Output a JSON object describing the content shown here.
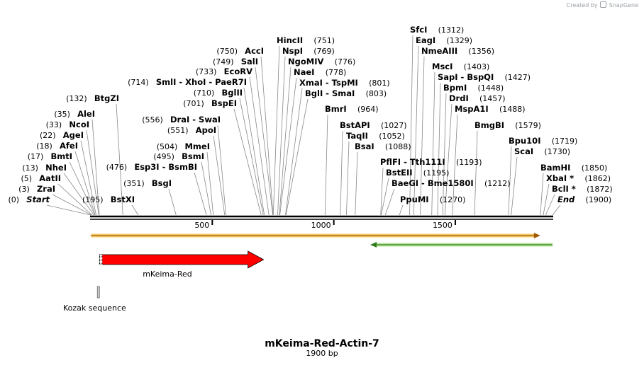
{
  "watermark": {
    "prefix": "Created by",
    "brand": "SnapGene"
  },
  "plasmid": {
    "name": "mKeima-Red-Actin-7",
    "length_label": "1900 bp",
    "length": 1900
  },
  "ticks": [
    {
      "pos": 500,
      "label": "500"
    },
    {
      "pos": 1000,
      "label": "1000"
    },
    {
      "pos": 1500,
      "label": "1500"
    }
  ],
  "features": {
    "orange_arrow": {
      "start": 1,
      "end": 1850,
      "direction": "forward",
      "color": "#f0a030"
    },
    "green_arrow": {
      "start": 1150,
      "end": 1900,
      "direction": "reverse",
      "color": "#3aa030"
    },
    "mkeima": {
      "name": "mKeima-Red",
      "start": 36,
      "end": 711,
      "color": "#ff0000"
    },
    "kozak": {
      "name": "Kozak sequence",
      "start": 30,
      "end": 36
    }
  },
  "enzymes": [
    {
      "name": "Start",
      "pos": "0",
      "site": 0,
      "italic": true,
      "order": "pos-first"
    },
    {
      "name": "ZraI",
      "pos": "3",
      "site": 3,
      "order": "pos-first"
    },
    {
      "name": "AatII",
      "pos": "5",
      "site": 5,
      "order": "pos-first"
    },
    {
      "name": "NheI",
      "pos": "13",
      "site": 13,
      "order": "pos-first"
    },
    {
      "name": "BmtI",
      "pos": "17",
      "site": 17,
      "order": "pos-first"
    },
    {
      "name": "AfeI",
      "pos": "18",
      "site": 18,
      "order": "pos-first"
    },
    {
      "name": "AgeI",
      "pos": "22",
      "site": 22,
      "order": "pos-first"
    },
    {
      "name": "NcoI",
      "pos": "33",
      "site": 33,
      "order": "pos-first"
    },
    {
      "name": "AleI",
      "pos": "35",
      "site": 35,
      "order": "pos-first"
    },
    {
      "name": "BtgZI",
      "pos": "132",
      "site": 132,
      "order": "pos-first"
    },
    {
      "name": "BstXI",
      "pos": "195",
      "site": 195,
      "order": "pos-first"
    },
    {
      "name": "Esp3I - BsmBI",
      "pos": "476",
      "site": 476,
      "order": "pos-first"
    },
    {
      "name": "BsgI",
      "pos": "351",
      "site": 351,
      "order": "pos-first"
    },
    {
      "name": "SmlI - XhoI - PaeR7I",
      "pos": "714",
      "site": 714,
      "order": "pos-first"
    },
    {
      "name": "DraI - SwaI",
      "pos": "556",
      "site": 556,
      "order": "pos-first"
    },
    {
      "name": "ApoI",
      "pos": "551",
      "site": 551,
      "order": "pos-first"
    },
    {
      "name": "MmeI",
      "pos": "504",
      "site": 504,
      "order": "pos-first"
    },
    {
      "name": "BsmI",
      "pos": "495",
      "site": 495,
      "order": "pos-first"
    },
    {
      "name": "AccI",
      "pos": "750",
      "site": 750,
      "order": "pos-first"
    },
    {
      "name": "SalI",
      "pos": "749",
      "site": 749,
      "order": "pos-first"
    },
    {
      "name": "EcoRV",
      "pos": "733",
      "site": 733,
      "order": "pos-first"
    },
    {
      "name": "BglII",
      "pos": "710",
      "site": 710,
      "order": "pos-first"
    },
    {
      "name": "BspEI",
      "pos": "701",
      "site": 701,
      "order": "pos-first"
    },
    {
      "name": "HincII",
      "pos": "751",
      "site": 751,
      "order": "name-first"
    },
    {
      "name": "NspI",
      "pos": "769",
      "site": 769,
      "order": "name-first"
    },
    {
      "name": "NgoMIV",
      "pos": "776",
      "site": 776,
      "order": "name-first"
    },
    {
      "name": "NaeI",
      "pos": "778",
      "site": 778,
      "order": "name-first"
    },
    {
      "name": "XmaI - TspMI",
      "pos": "801",
      "site": 801,
      "order": "name-first"
    },
    {
      "name": "BglI - SmaI",
      "pos": "803",
      "site": 803,
      "order": "name-first"
    },
    {
      "name": "BmrI",
      "pos": "964",
      "site": 964,
      "order": "name-first"
    },
    {
      "name": "BstAPI",
      "pos": "1027",
      "site": 1027,
      "order": "name-first"
    },
    {
      "name": "TaqII",
      "pos": "1052",
      "site": 1052,
      "order": "name-first"
    },
    {
      "name": "BsaI",
      "pos": "1088",
      "site": 1088,
      "order": "name-first"
    },
    {
      "name": "PflFI - Tth111I",
      "pos": "1193",
      "site": 1193,
      "order": "name-first"
    },
    {
      "name": "BstEII",
      "pos": "1195",
      "site": 1195,
      "order": "name-first"
    },
    {
      "name": "BaeGI - Bme1580I",
      "pos": "1212",
      "site": 1212,
      "order": "name-first"
    },
    {
      "name": "PpuMI",
      "pos": "1270",
      "site": 1270,
      "order": "name-first"
    },
    {
      "name": "SfcI",
      "pos": "1312",
      "site": 1312,
      "order": "name-first"
    },
    {
      "name": "EagI",
      "pos": "1329",
      "site": 1329,
      "order": "name-first"
    },
    {
      "name": "NmeAIII",
      "pos": "1356",
      "site": 1356,
      "order": "name-first"
    },
    {
      "name": "MscI",
      "pos": "1403",
      "site": 1403,
      "order": "name-first"
    },
    {
      "name": "SapI - BspQI",
      "pos": "1427",
      "site": 1427,
      "order": "name-first"
    },
    {
      "name": "BpmI",
      "pos": "1448",
      "site": 1448,
      "order": "name-first"
    },
    {
      "name": "DrdI",
      "pos": "1457",
      "site": 1457,
      "order": "name-first"
    },
    {
      "name": "MspA1I",
      "pos": "1488",
      "site": 1488,
      "order": "name-first"
    },
    {
      "name": "BmgBI",
      "pos": "1579",
      "site": 1579,
      "order": "name-first"
    },
    {
      "name": "Bpu10I",
      "pos": "1719",
      "site": 1719,
      "order": "name-first"
    },
    {
      "name": "ScaI",
      "pos": "1730",
      "site": 1730,
      "order": "name-first"
    },
    {
      "name": "BamHI",
      "pos": "1850",
      "site": 1850,
      "order": "name-first"
    },
    {
      "name": "XbaI *",
      "pos": "1862",
      "site": 1862,
      "order": "name-first"
    },
    {
      "name": "BclI *",
      "pos": "1872",
      "site": 1872,
      "order": "name-first"
    },
    {
      "name": "End",
      "pos": "1900",
      "site": 1900,
      "italic": true,
      "order": "name-first"
    }
  ]
}
